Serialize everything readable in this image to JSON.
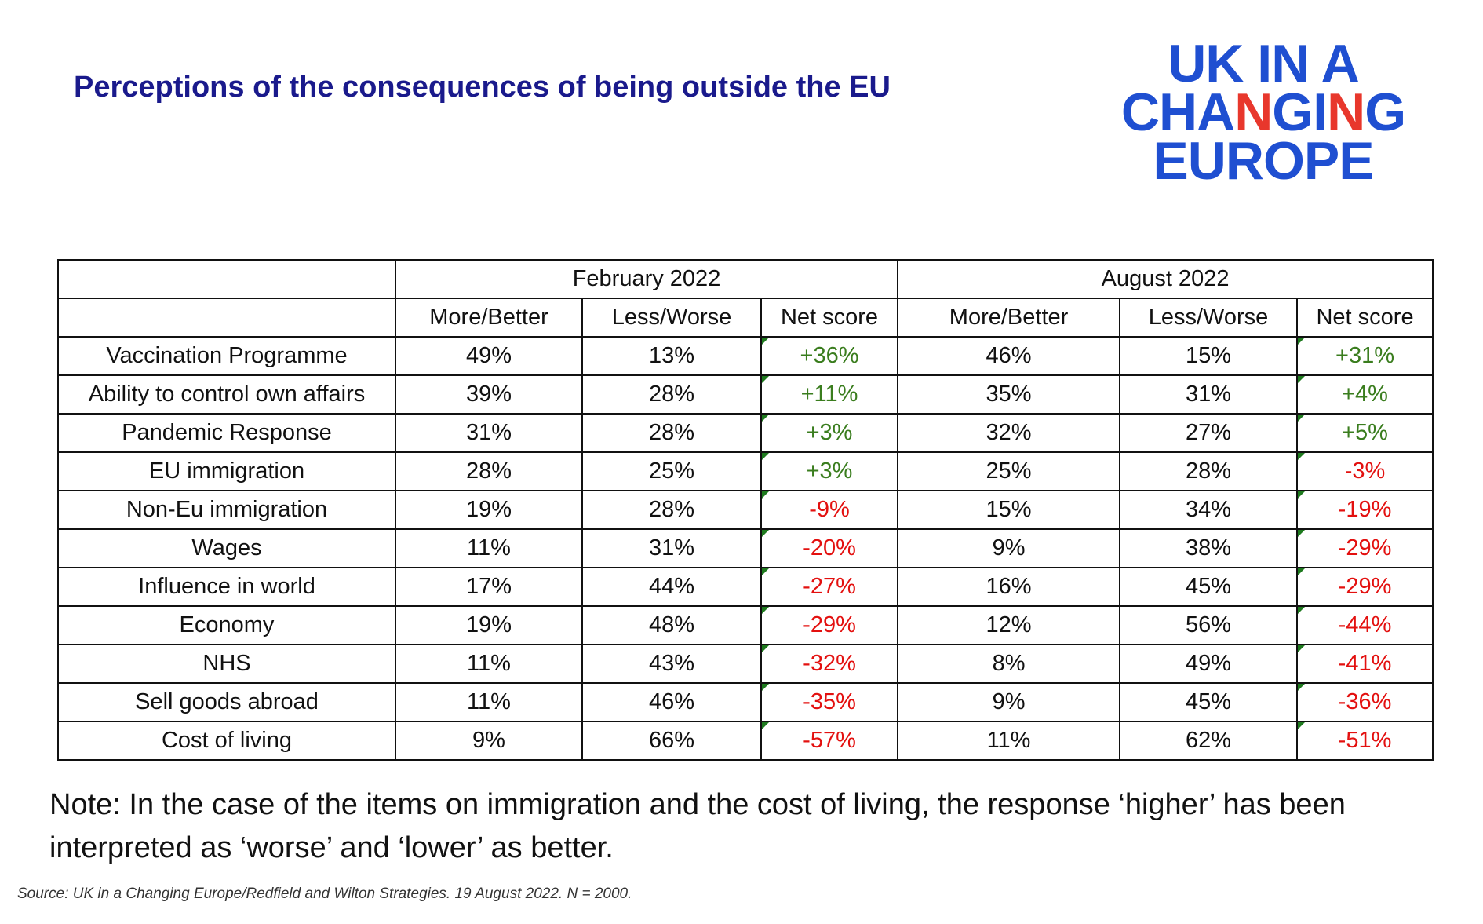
{
  "header": {
    "title": "Perceptions of the consequences of being outside the EU",
    "logo": [
      "UK IN A",
      "CHANGING",
      "EUROPE"
    ]
  },
  "table": {
    "groups": [
      "February 2022",
      "August 2022"
    ],
    "columns": [
      "More/Better",
      "Less/Worse",
      "Net score",
      "More/Better",
      "Less/Worse",
      "Net score"
    ],
    "positive_color": "#3a7d1e",
    "negative_color": "#e3100f",
    "rows": [
      [
        "Vaccination Programme",
        "49%",
        "13%",
        "+36%",
        "46%",
        "15%",
        "+31%"
      ],
      [
        "Ability to control own affairs",
        "39%",
        "28%",
        "+11%",
        "35%",
        "31%",
        "+4%"
      ],
      [
        "Pandemic Response",
        "31%",
        "28%",
        "+3%",
        "32%",
        "27%",
        "+5%"
      ],
      [
        "EU immigration",
        "28%",
        "25%",
        "+3%",
        "25%",
        "28%",
        "-3%"
      ],
      [
        "Non-Eu immigration",
        "19%",
        "28%",
        "-9%",
        "15%",
        "34%",
        "-19%"
      ],
      [
        "Wages",
        "11%",
        "31%",
        "-20%",
        "9%",
        "38%",
        "-29%"
      ],
      [
        "Influence in world",
        "17%",
        "44%",
        "-27%",
        "16%",
        "45%",
        "-29%"
      ],
      [
        "Economy",
        "19%",
        "48%",
        "-29%",
        "12%",
        "56%",
        "-44%"
      ],
      [
        "NHS",
        "11%",
        "43%",
        "-32%",
        "8%",
        "49%",
        "-41%"
      ],
      [
        "Sell goods abroad",
        "11%",
        "46%",
        "-35%",
        "9%",
        "45%",
        "-36%"
      ],
      [
        "Cost of living",
        "9%",
        "66%",
        "-57%",
        "11%",
        "62%",
        "-51%"
      ]
    ]
  },
  "note": "Note: In the case of the items on immigration and the cost of living, the response ‘higher’ has been interpreted as ‘worse’ and ‘lower’ as better.",
  "source": "Source: UK in a Changing Europe/Redfield and Wilton Strategies. 19 August 2022. N = 2000."
}
